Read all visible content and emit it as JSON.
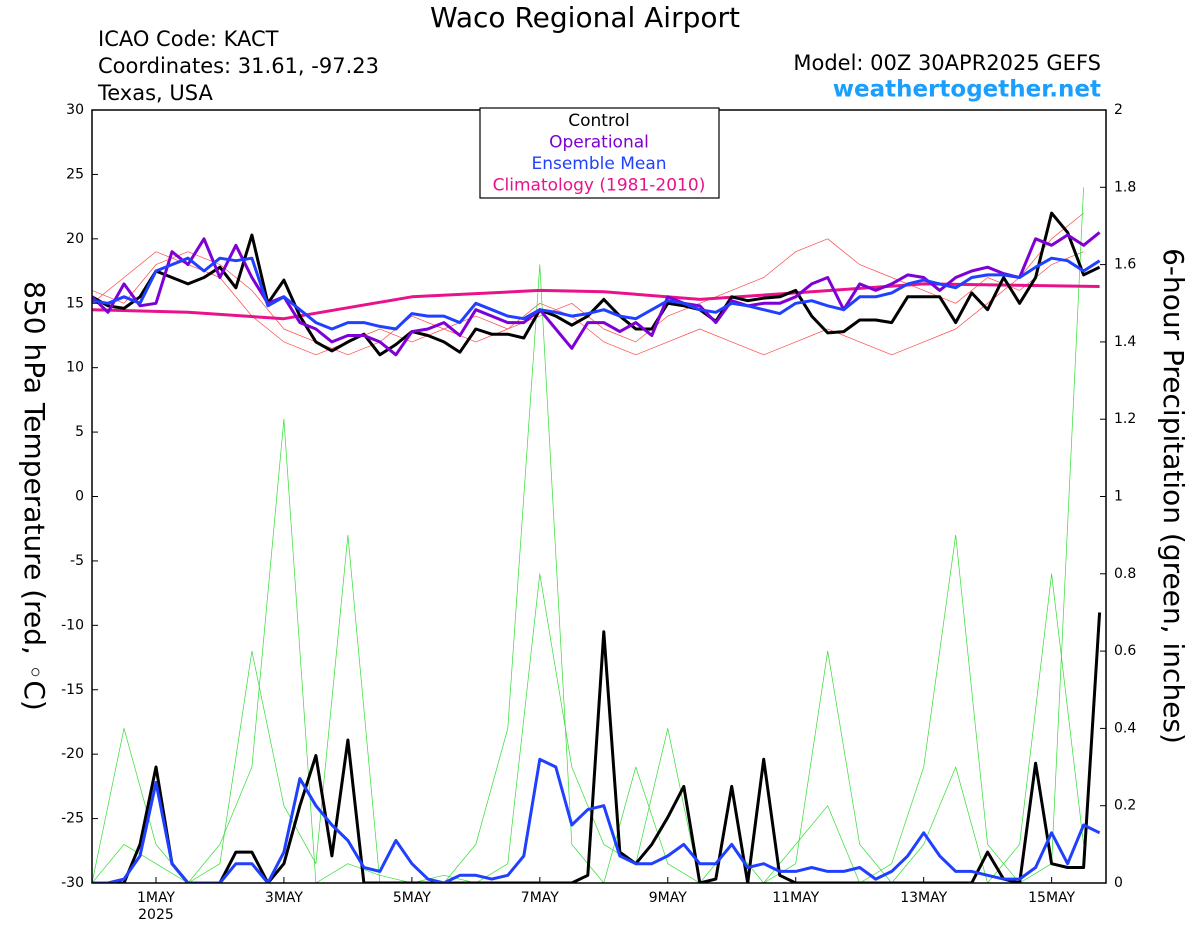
{
  "chart_data": {
    "type": "line",
    "title": "Waco Regional Airport",
    "info_left": [
      "ICAO Code: KACT",
      "Coordinates: 31.61, -97.23",
      "Texas, USA"
    ],
    "model": "Model: 00Z 30APR2025 GEFS",
    "site": "weathertogether.net",
    "y_label": "850 hPa Temperature (red, ◦C)",
    "y2_label": "6-hour Precipitation (green, inches)",
    "x_sublabel": "2025",
    "x": [
      0,
      0.25,
      0.5,
      0.75,
      1,
      1.25,
      1.5,
      1.75,
      2,
      2.25,
      2.5,
      2.75,
      3,
      3.25,
      3.5,
      3.75,
      4,
      4.25,
      4.5,
      4.75,
      5,
      5.25,
      5.5,
      5.75,
      6,
      6.25,
      6.5,
      6.75,
      7,
      7.25,
      7.5,
      7.75,
      8,
      8.25,
      8.5,
      8.75,
      9,
      9.25,
      9.5,
      9.75,
      10,
      10.25,
      10.5,
      10.75,
      11,
      11.25,
      11.5,
      11.75,
      12,
      12.25,
      12.5,
      12.75,
      13,
      13.25,
      13.5,
      13.75,
      14,
      14.25,
      14.5,
      14.75,
      15,
      15.25,
      15.5,
      15.75
    ],
    "xlim": [
      0,
      15.85
    ],
    "xticks": [
      {
        "value": 1,
        "label": "1MAY"
      },
      {
        "value": 3,
        "label": "3MAY"
      },
      {
        "value": 5,
        "label": "5MAY"
      },
      {
        "value": 7,
        "label": "7MAY"
      },
      {
        "value": 9,
        "label": "9MAY"
      },
      {
        "value": 11,
        "label": "11MAY"
      },
      {
        "value": 13,
        "label": "13MAY"
      },
      {
        "value": 15,
        "label": "15MAY"
      }
    ],
    "ylim": [
      -30,
      30
    ],
    "yticks": [
      -30,
      -25,
      -20,
      -15,
      -10,
      -5,
      0,
      5,
      10,
      15,
      20,
      25,
      30
    ],
    "y2lim": [
      0,
      2
    ],
    "y2ticks": [
      0,
      0.2,
      0.4,
      0.6,
      0.8,
      1,
      1.2,
      1.4,
      1.6,
      1.8,
      2
    ],
    "series": [
      {
        "color": "#ff4a4a",
        "width": 0.7,
        "x": [
          0,
          0.5,
          1,
          1.5,
          2,
          2.5,
          3,
          3.5,
          4,
          4.5,
          5,
          5.5,
          6,
          6.5,
          7,
          7.5,
          8,
          8.5,
          9,
          9.5,
          10,
          10.5,
          11,
          11.5,
          12,
          12.5,
          13,
          13.5,
          14,
          14.5,
          15,
          15.5
        ],
        "values": [
          15,
          17,
          19,
          18,
          17,
          14,
          12,
          11,
          12,
          13,
          12,
          13,
          14,
          13,
          14,
          15,
          13,
          12,
          14,
          15,
          16,
          17,
          19,
          20,
          18,
          17,
          16,
          15,
          17,
          16,
          18,
          19
        ]
      },
      {
        "color": "#ff4a4a",
        "width": 0.7,
        "x": [
          0,
          0.5,
          1,
          1.5,
          2,
          2.5,
          3,
          3.5,
          4,
          4.5,
          5,
          5.5,
          6,
          6.5,
          7,
          7.5,
          8,
          8.5,
          9,
          9.5,
          10,
          10.5,
          11,
          11.5,
          12,
          12.5,
          13,
          13.5,
          14,
          14.5,
          15,
          15.5
        ],
        "values": [
          16,
          15,
          18,
          19,
          18,
          16,
          13,
          12,
          11,
          12,
          14,
          13,
          12,
          13,
          15,
          14,
          12,
          11,
          12,
          13,
          12,
          11,
          12,
          13,
          12,
          11,
          12,
          13,
          15,
          17,
          20,
          22
        ]
      },
      {
        "color": "#33dd33",
        "width": 0.7,
        "axis": "y2",
        "x": [
          0,
          0.5,
          1,
          1.5,
          2,
          2.5,
          3,
          3.5,
          4,
          4.5,
          5,
          5.5,
          6,
          6.5,
          7,
          7.5,
          8,
          8.5,
          9,
          9.5,
          10,
          10.5,
          11,
          11.5,
          12,
          12.5,
          13,
          13.5,
          14,
          14.5,
          15,
          15.5
        ],
        "values": [
          0,
          0.4,
          0.1,
          0,
          0.05,
          0.6,
          0.2,
          0.05,
          0.9,
          0,
          0,
          0.02,
          0,
          0.05,
          0.8,
          0.3,
          0.1,
          0.05,
          0.4,
          0,
          0,
          0,
          0.1,
          0.2,
          0,
          0.05,
          0.3,
          0.9,
          0.1,
          0,
          0.05,
          1.8
        ]
      },
      {
        "color": "#33dd33",
        "width": 0.7,
        "axis": "y2",
        "x": [
          0,
          0.5,
          1,
          1.5,
          2,
          2.5,
          3,
          3.5,
          4,
          4.5,
          5,
          5.5,
          6,
          6.5,
          7,
          7.5,
          8,
          8.5,
          9,
          9.5,
          10,
          10.5,
          11,
          11.5,
          12,
          12.5,
          13,
          13.5,
          14,
          14.5,
          15,
          15.5
        ],
        "values": [
          0,
          0.1,
          0.05,
          0,
          0.1,
          0.3,
          1.2,
          0,
          0.05,
          0.02,
          0,
          0,
          0.1,
          0.4,
          1.6,
          0.1,
          0,
          0.3,
          0.05,
          0,
          0.1,
          0,
          0.05,
          0.6,
          0.1,
          0,
          0.1,
          0.3,
          0,
          0.1,
          0.8,
          0.1
        ]
      },
      {
        "name": "Climatology (1981-2010)",
        "color": "#e8138a",
        "width": 3,
        "x": [
          0,
          1.5,
          3,
          5,
          7,
          8,
          9.5,
          11,
          13,
          15.75
        ],
        "values": [
          14.5,
          14.3,
          13.8,
          15.5,
          16,
          15.9,
          15.3,
          15.8,
          16.5,
          16.3
        ]
      },
      {
        "color": "#000000",
        "width": 3,
        "axis": "y2",
        "values": [
          0,
          0,
          0,
          0.1,
          0.3,
          0.05,
          0,
          0,
          0,
          0.08,
          0.08,
          0,
          0.05,
          0.2,
          0.33,
          0.07,
          0.37,
          0,
          0,
          0,
          0,
          0,
          0,
          0,
          0,
          0,
          0,
          0,
          0,
          0,
          0,
          0.02,
          0.65,
          0.08,
          0.05,
          0.1,
          0.17,
          0.25,
          0,
          0.01,
          0.25,
          0,
          0.32,
          0.02,
          0,
          0,
          0,
          0,
          0,
          0,
          0,
          0,
          0,
          0,
          0,
          0,
          0.08,
          0.01,
          0,
          0.31,
          0.05,
          0.04,
          0.04,
          0.7
        ]
      },
      {
        "color": "#2040ff",
        "width": 3,
        "axis": "y2",
        "values": [
          0,
          0,
          0.01,
          0.07,
          0.26,
          0.05,
          0,
          0,
          0,
          0.05,
          0.05,
          0,
          0.08,
          0.27,
          0.2,
          0.15,
          0.11,
          0.04,
          0.03,
          0.11,
          0.05,
          0.01,
          0,
          0.02,
          0.02,
          0.01,
          0.02,
          0.07,
          0.32,
          0.3,
          0.15,
          0.19,
          0.2,
          0.07,
          0.05,
          0.05,
          0.07,
          0.1,
          0.05,
          0.05,
          0.1,
          0.04,
          0.05,
          0.03,
          0.03,
          0.04,
          0.03,
          0.03,
          0.04,
          0.01,
          0.03,
          0.07,
          0.13,
          0.07,
          0.03,
          0.03,
          0.02,
          0.01,
          0.01,
          0.04,
          0.13,
          0.05,
          0.15,
          0.13
        ]
      },
      {
        "name": "Control",
        "color": "#000000",
        "width": 3,
        "values": [
          15.5,
          14.8,
          14.6,
          15.5,
          17.5,
          17,
          16.5,
          17,
          17.8,
          16.2,
          20.3,
          15,
          16.8,
          14,
          12,
          11.3,
          12,
          12.6,
          11,
          11.8,
          12.8,
          12.5,
          12,
          11.2,
          13,
          12.6,
          12.6,
          12.3,
          14.5,
          14,
          13.3,
          14,
          15.3,
          14,
          13,
          13,
          15,
          14.8,
          14.5,
          13.6,
          15.5,
          15.2,
          15.4,
          15.5,
          16,
          14,
          12.7,
          12.8,
          13.7,
          13.7,
          13.5,
          15.5,
          15.5,
          15.5,
          13.5,
          15.8,
          14.5,
          17,
          15,
          17,
          22,
          20.5,
          17.2,
          17.8
        ]
      },
      {
        "name": "Operational",
        "color": "#7f00d4",
        "width": 3,
        "values": [
          15.5,
          14.3,
          16.5,
          14.8,
          15,
          19,
          18,
          20,
          17,
          19.5,
          17,
          15,
          15.5,
          13.5,
          13,
          12,
          12.5,
          12.5,
          12,
          11,
          12.8,
          13,
          13.5,
          12.5,
          14.5,
          14,
          13.5,
          13.5,
          14.5,
          13,
          11.5,
          13.5,
          13.5,
          12.8,
          13.5,
          12.5,
          15.5,
          15,
          14.8,
          13.5,
          15.2,
          14.8,
          15,
          15,
          15.5,
          16.5,
          17,
          14.5,
          16.5,
          16,
          16.5,
          17.2,
          17,
          16,
          17,
          17.5,
          17.8,
          17.3,
          17,
          20,
          19.5,
          20.3,
          19.5,
          20.5
        ]
      },
      {
        "name": "Ensemble Mean",
        "color": "#2040ff",
        "width": 3,
        "values": [
          15.2,
          15,
          15.5,
          15,
          17.5,
          18,
          18.5,
          17.5,
          18.5,
          18.3,
          18.5,
          14.8,
          15.5,
          14.5,
          13.5,
          13,
          13.5,
          13.5,
          13.2,
          13,
          14.2,
          14,
          14,
          13.5,
          15,
          14.5,
          14,
          13.8,
          14.5,
          14.3,
          14,
          14.2,
          14.5,
          14,
          13.8,
          14.5,
          15.2,
          15,
          14.5,
          14.3,
          15,
          14.8,
          14.5,
          14.2,
          15,
          15.2,
          14.8,
          14.5,
          15.5,
          15.5,
          15.8,
          16.5,
          16.8,
          16.5,
          16.2,
          17,
          17.2,
          17.2,
          17,
          17.8,
          18.5,
          18.3,
          17.5,
          18.3
        ]
      }
    ],
    "legend": "top-center"
  }
}
